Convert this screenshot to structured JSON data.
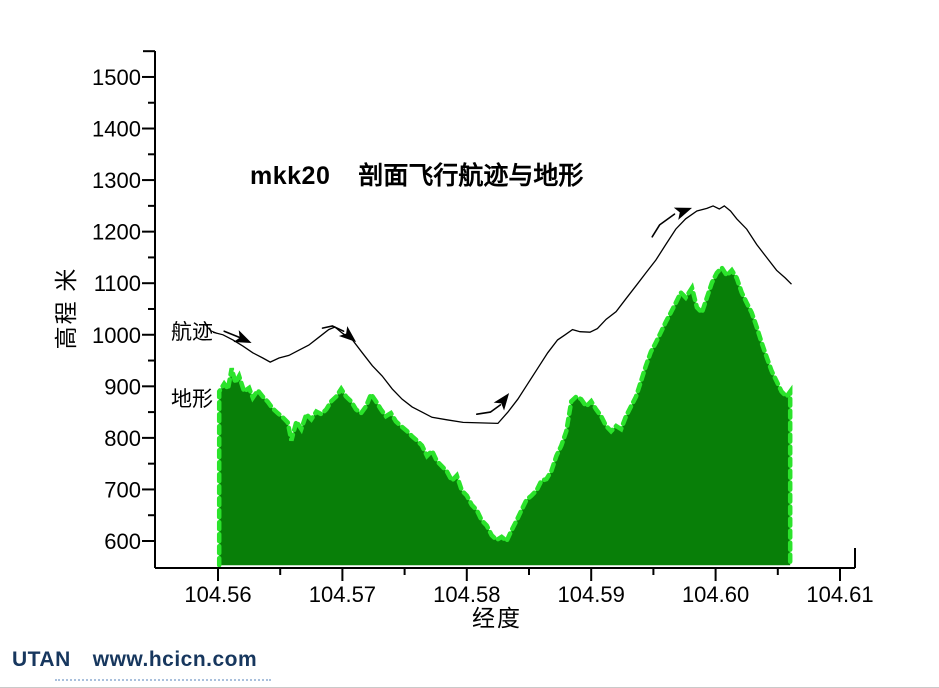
{
  "title": {
    "prefix": "mkk20",
    "main": "剖面飞行航迹与地形"
  },
  "annotations": {
    "track_label": "航迹",
    "terrain_label": "地形"
  },
  "footer": {
    "brand": "UTAN",
    "url": "www.hcicn.com"
  },
  "colors": {
    "terrain_fill": "#087F08",
    "terrain_outline": "#2BE32B",
    "track_line": "#000000",
    "axis": "#000000",
    "footer_text": "#17375E",
    "footer_underline": "#A9C0DC"
  },
  "chart_data": {
    "type": "area",
    "title": "mkk20 剖面飞行航迹与地形",
    "xlabel": "经度",
    "ylabel": "高程 米",
    "xlim": [
      104.555,
      104.611
    ],
    "ylim": [
      550,
      1550
    ],
    "grid": false,
    "x_major_ticks": [
      104.56,
      104.57,
      104.58,
      104.59,
      104.6,
      104.61
    ],
    "x_major_labels": [
      "104.56",
      "104.57",
      "104.58",
      "104.59",
      "104.60",
      "104.61"
    ],
    "x_minor_ticks": [
      104.565,
      104.575,
      104.585,
      104.595,
      104.605
    ],
    "y_major_ticks": [
      600,
      700,
      800,
      900,
      1000,
      1100,
      1200,
      1300,
      1400,
      1500
    ],
    "y_major_labels": [
      "600",
      "700",
      "800",
      "900",
      "1000",
      "1100",
      "1200",
      "1300",
      "1400",
      "1500"
    ],
    "y_minor_ticks": [
      650,
      750,
      850,
      950,
      1050,
      1150,
      1250,
      1350,
      1450,
      1550
    ],
    "base_elevation": 553,
    "series": [
      {
        "name": "地形",
        "type": "area",
        "points": [
          [
            104.5601,
            890
          ],
          [
            104.5605,
            905
          ],
          [
            104.5608,
            895
          ],
          [
            104.5611,
            935
          ],
          [
            104.5614,
            907
          ],
          [
            104.5617,
            920
          ],
          [
            104.5621,
            890
          ],
          [
            104.5625,
            897
          ],
          [
            104.5628,
            878
          ],
          [
            104.5632,
            892
          ],
          [
            104.5636,
            880
          ],
          [
            104.564,
            870
          ],
          [
            104.5644,
            857
          ],
          [
            104.5648,
            848
          ],
          [
            104.5652,
            840
          ],
          [
            104.5656,
            830
          ],
          [
            104.5659,
            795
          ],
          [
            104.5663,
            832
          ],
          [
            104.5667,
            817
          ],
          [
            104.5671,
            846
          ],
          [
            104.5675,
            836
          ],
          [
            104.5679,
            851
          ],
          [
            104.5683,
            846
          ],
          [
            104.5687,
            855
          ],
          [
            104.5691,
            871
          ],
          [
            104.5695,
            880
          ],
          [
            104.5699,
            895
          ],
          [
            104.5703,
            880
          ],
          [
            104.5707,
            871
          ],
          [
            104.5711,
            855
          ],
          [
            104.5715,
            848
          ],
          [
            104.5719,
            861
          ],
          [
            104.5723,
            885
          ],
          [
            104.5727,
            871
          ],
          [
            104.5731,
            855
          ],
          [
            104.5735,
            842
          ],
          [
            104.5739,
            848
          ],
          [
            104.5743,
            832
          ],
          [
            104.5747,
            823
          ],
          [
            104.5752,
            813
          ],
          [
            104.5756,
            803
          ],
          [
            104.576,
            795
          ],
          [
            104.5764,
            785
          ],
          [
            104.5768,
            765
          ],
          [
            104.5772,
            775
          ],
          [
            104.5776,
            755
          ],
          [
            104.578,
            745
          ],
          [
            104.5784,
            735
          ],
          [
            104.5788,
            717
          ],
          [
            104.5792,
            727
          ],
          [
            104.5796,
            698
          ],
          [
            104.58,
            688
          ],
          [
            104.5804,
            670
          ],
          [
            104.5808,
            660
          ],
          [
            104.5812,
            640
          ],
          [
            104.5816,
            630
          ],
          [
            104.582,
            611
          ],
          [
            104.5824,
            602
          ],
          [
            104.5828,
            608
          ],
          [
            104.5832,
            600
          ],
          [
            104.5836,
            621
          ],
          [
            104.584,
            640
          ],
          [
            104.5844,
            660
          ],
          [
            104.5848,
            680
          ],
          [
            104.5852,
            688
          ],
          [
            104.5856,
            698
          ],
          [
            104.586,
            717
          ],
          [
            104.5864,
            720
          ],
          [
            104.5868,
            736
          ],
          [
            104.5872,
            765
          ],
          [
            104.5876,
            785
          ],
          [
            104.588,
            813
          ],
          [
            104.5884,
            871
          ],
          [
            104.5888,
            880
          ],
          [
            104.5892,
            875
          ],
          [
            104.5896,
            861
          ],
          [
            104.59,
            871
          ],
          [
            104.5904,
            855
          ],
          [
            104.5908,
            842
          ],
          [
            104.5912,
            823
          ],
          [
            104.5916,
            813
          ],
          [
            104.592,
            823
          ],
          [
            104.5924,
            817
          ],
          [
            104.5928,
            842
          ],
          [
            104.5932,
            861
          ],
          [
            104.5936,
            880
          ],
          [
            104.594,
            910
          ],
          [
            104.5944,
            940
          ],
          [
            104.5948,
            967
          ],
          [
            104.5952,
            985
          ],
          [
            104.5956,
            1005
          ],
          [
            104.596,
            1025
          ],
          [
            104.5964,
            1043
          ],
          [
            104.5968,
            1062
          ],
          [
            104.5972,
            1082
          ],
          [
            104.5976,
            1072
          ],
          [
            104.5981,
            1091
          ],
          [
            104.5985,
            1053
          ],
          [
            104.5989,
            1043
          ],
          [
            104.5993,
            1072
          ],
          [
            104.5997,
            1101
          ],
          [
            104.6001,
            1120
          ],
          [
            104.6005,
            1130
          ],
          [
            104.6009,
            1115
          ],
          [
            104.6013,
            1125
          ],
          [
            104.6017,
            1110
          ],
          [
            104.6021,
            1082
          ],
          [
            104.6025,
            1062
          ],
          [
            104.6029,
            1043
          ],
          [
            104.6033,
            1015
          ],
          [
            104.6037,
            985
          ],
          [
            104.6041,
            957
          ],
          [
            104.6045,
            930
          ],
          [
            104.6049,
            910
          ],
          [
            104.6053,
            890
          ],
          [
            104.6057,
            880
          ],
          [
            104.606,
            890
          ]
        ]
      },
      {
        "name": "航迹",
        "type": "line",
        "points": [
          [
            104.5596,
            1005
          ],
          [
            104.5604,
            1000
          ],
          [
            104.5612,
            990
          ],
          [
            104.562,
            978
          ],
          [
            104.5628,
            965
          ],
          [
            104.5636,
            955
          ],
          [
            104.5642,
            947
          ],
          [
            104.5649,
            955
          ],
          [
            104.5657,
            960
          ],
          [
            104.5665,
            970
          ],
          [
            104.5673,
            980
          ],
          [
            104.5681,
            995
          ],
          [
            104.5689,
            1010
          ],
          [
            104.5694,
            1015
          ],
          [
            104.57,
            1003
          ],
          [
            104.5708,
            990
          ],
          [
            104.5716,
            965
          ],
          [
            104.5724,
            940
          ],
          [
            104.5732,
            920
          ],
          [
            104.574,
            895
          ],
          [
            104.5748,
            875
          ],
          [
            104.5756,
            860
          ],
          [
            104.5764,
            850
          ],
          [
            104.5772,
            840
          ],
          [
            104.5784,
            835
          ],
          [
            104.5797,
            830
          ],
          [
            104.5811,
            829
          ],
          [
            104.5825,
            828
          ],
          [
            104.5833,
            850
          ],
          [
            104.5841,
            875
          ],
          [
            104.5849,
            905
          ],
          [
            104.5857,
            935
          ],
          [
            104.5865,
            965
          ],
          [
            104.5873,
            990
          ],
          [
            104.5879,
            1000
          ],
          [
            104.5885,
            1010
          ],
          [
            104.5891,
            1006
          ],
          [
            104.5899,
            1005
          ],
          [
            104.5905,
            1012
          ],
          [
            104.5912,
            1030
          ],
          [
            104.592,
            1045
          ],
          [
            104.5928,
            1070
          ],
          [
            104.5936,
            1095
          ],
          [
            104.5944,
            1120
          ],
          [
            104.5952,
            1145
          ],
          [
            104.596,
            1175
          ],
          [
            104.5968,
            1205
          ],
          [
            104.5976,
            1225
          ],
          [
            104.5985,
            1240
          ],
          [
            104.5993,
            1245
          ],
          [
            104.5998,
            1250
          ],
          [
            104.6003,
            1244
          ],
          [
            104.6007,
            1250
          ],
          [
            104.6012,
            1240
          ],
          [
            104.6017,
            1225
          ],
          [
            104.6025,
            1205
          ],
          [
            104.6033,
            1175
          ],
          [
            104.6041,
            1150
          ],
          [
            104.6049,
            1125
          ],
          [
            104.6056,
            1110
          ],
          [
            104.6061,
            1098
          ]
        ]
      }
    ],
    "arrows": [
      {
        "tip": [
          104.5627,
          984
        ],
        "angle": 24,
        "tail": [
          [
            104.5605,
            1007
          ],
          [
            104.5614,
            998
          ],
          [
            104.5624,
            988
          ]
        ]
      },
      {
        "tip": [
          104.5711,
          986
        ],
        "angle": 40,
        "tail": [
          [
            104.5684,
            1013
          ],
          [
            104.5692,
            1017
          ],
          [
            104.5701,
            1007
          ]
        ]
      },
      {
        "tip": [
          104.5834,
          887
        ],
        "angle": -53,
        "tail": [
          [
            104.5808,
            846
          ],
          [
            104.5819,
            850
          ],
          [
            104.5827,
            864
          ]
        ]
      },
      {
        "tip": [
          104.5981,
          1246
        ],
        "angle": -20,
        "tail": [
          [
            104.5949,
            1190
          ],
          [
            104.5955,
            1213
          ],
          [
            104.5967,
            1234
          ]
        ]
      }
    ],
    "leader_line": [
      [
        104.559,
        1019
      ],
      [
        104.5594,
        1008
      ],
      [
        104.5599,
        1003
      ]
    ]
  }
}
